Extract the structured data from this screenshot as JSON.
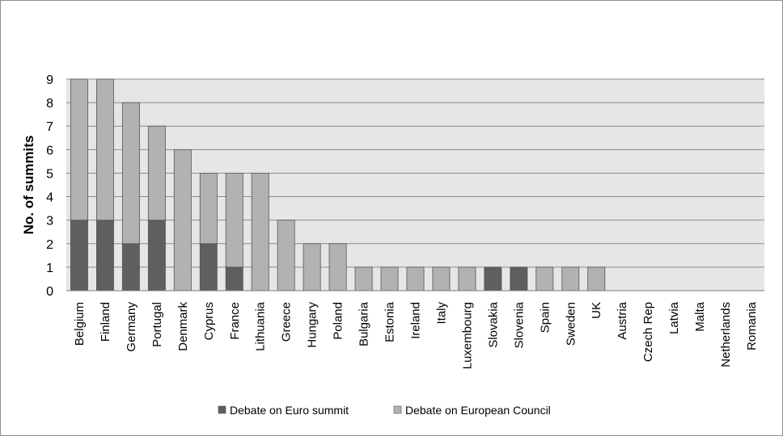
{
  "chart_data": {
    "type": "bar",
    "stacked": true,
    "title": "",
    "xlabel": "",
    "ylabel": "No. of summits",
    "ylim": [
      0,
      9
    ],
    "yticks": [
      0,
      1,
      2,
      3,
      4,
      5,
      6,
      7,
      8,
      9
    ],
    "grid": true,
    "legend_position": "bottom",
    "categories": [
      "Belgium",
      "Finland",
      "Germany",
      "Portugal",
      "Denmark",
      "Cyprus",
      "France",
      "Lithuania",
      "Greece",
      "Hungary",
      "Poland",
      "Bulgaria",
      "Estonia",
      "Ireland",
      "Italy",
      "Luxembourg",
      "Slovakia",
      "Slovenia",
      "Spain",
      "Sweden",
      "UK",
      "Austria",
      "Czech Rep",
      "Latvia",
      "Malta",
      "Netherlands",
      "Romania"
    ],
    "series": [
      {
        "name": "Debate on Euro summit",
        "color": "#5f5f5f",
        "values": [
          3,
          3,
          2,
          3,
          0,
          2,
          1,
          0,
          0,
          0,
          0,
          0,
          0,
          0,
          0,
          0,
          1,
          1,
          0,
          0,
          0,
          0,
          0,
          0,
          0,
          0,
          0
        ]
      },
      {
        "name": "Debate on European Council",
        "color": "#b2b2b2",
        "values": [
          6,
          6,
          6,
          4,
          6,
          3,
          4,
          5,
          3,
          2,
          2,
          1,
          1,
          1,
          1,
          1,
          0,
          0,
          1,
          1,
          1,
          0,
          0,
          0,
          0,
          0,
          0
        ]
      }
    ],
    "plot_background": "#e6e6e6",
    "gridline_color": "#8a8a8a"
  }
}
